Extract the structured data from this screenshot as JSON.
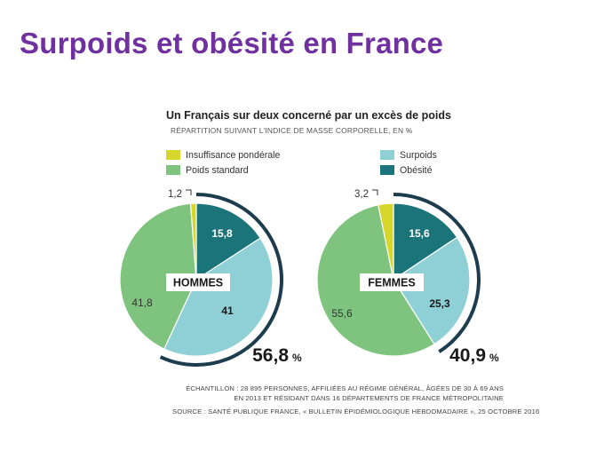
{
  "slide": {
    "title": "Surpoids et obésité en France"
  },
  "colors": {
    "insuffisance": "#d6d62b",
    "standard": "#7fc47e",
    "surpoids": "#8fd0d6",
    "obesite": "#1b7479",
    "accent": "#1d3d4f",
    "title": "#7030a0"
  },
  "chart_data": {
    "type": "pie",
    "title": "Un Français sur deux concerné par un excès de poids",
    "subtitle": "RÉPARTITION SUIVANT L'INDICE DE MASSE CORPORELLE, EN %",
    "legend": [
      {
        "name": "Insuffisance pondérale",
        "color": "#d6d62b"
      },
      {
        "name": "Poids standard",
        "color": "#7fc47e"
      },
      {
        "name": "Surpoids",
        "color": "#8fd0d6"
      },
      {
        "name": "Obésité",
        "color": "#1b7479"
      }
    ],
    "pies": [
      {
        "label": "HOMMES",
        "total_excess": "56,8",
        "unit": "%",
        "slices": [
          {
            "name": "Obésité",
            "value": 15.8,
            "label": "15,8"
          },
          {
            "name": "Surpoids",
            "value": 41,
            "label": "41"
          },
          {
            "name": "Poids standard",
            "value": 41.8,
            "label": "41,8"
          },
          {
            "name": "Insuffisance pondérale",
            "value": 1.2,
            "label": "1,2"
          }
        ]
      },
      {
        "label": "FEMMES",
        "total_excess": "40,9",
        "unit": "%",
        "slices": [
          {
            "name": "Obésité",
            "value": 15.6,
            "label": "15,6"
          },
          {
            "name": "Surpoids",
            "value": 25.3,
            "label": "25,3"
          },
          {
            "name": "Poids standard",
            "value": 55.6,
            "label": "55,6"
          },
          {
            "name": "Insuffisance pondérale",
            "value": 3.2,
            "label": "3,2"
          }
        ]
      }
    ]
  },
  "notes": {
    "sample_line1": "ÉCHANTILLON : 28 895 PERSONNES, AFFILIÉES AU RÉGIME GÉNÉRAL, ÂGÉES DE 30 À 69 ANS",
    "sample_line2": "EN 2013 ET RÉSIDANT DANS 16 DÉPARTEMENTS DE FRANCE MÉTROPOLITAINE",
    "source": "SOURCE :  SANTÉ PUBLIQUE FRANCE, « BULLETIN ÉPIDÉMIOLOGIQUE HEBDOMADAIRE », 25 OCTOBRE 2016"
  }
}
